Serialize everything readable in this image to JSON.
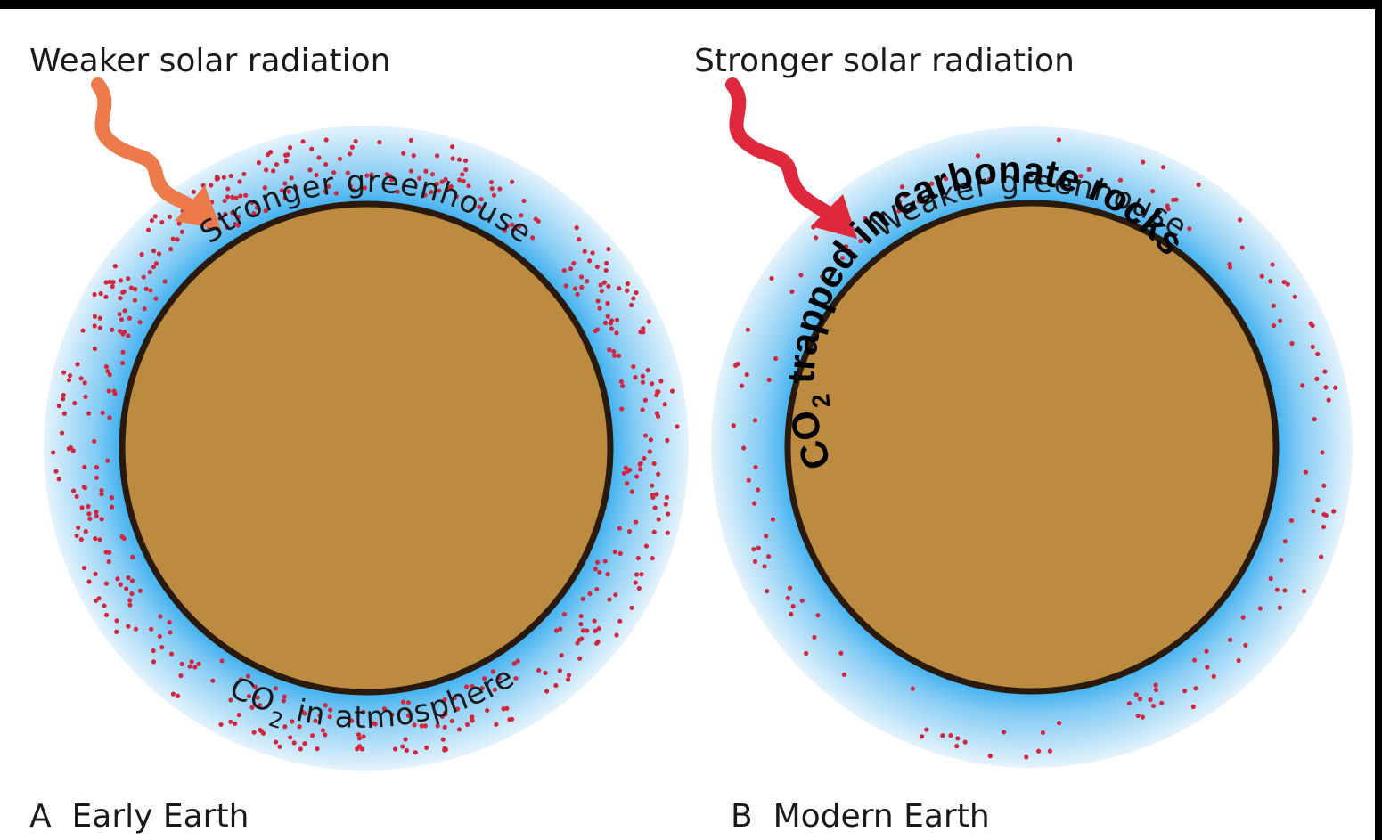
{
  "panel_a": {
    "radiation_label": "Weaker solar radiation",
    "greenhouse_label": "Stronger greenhouse",
    "co2_label": {
      "main": "CO",
      "sub": "2",
      "rest": " in atmosphere"
    },
    "caption": "A  Early Earth"
  },
  "panel_b": {
    "radiation_label": "Stronger solar radiation",
    "greenhouse_label": "Weaker greenhouse",
    "co2_label": {
      "main": "CO",
      "sub": "2",
      "rest": " trapped in carbonate rocks"
    },
    "caption": "B  Modern Earth"
  }
}
